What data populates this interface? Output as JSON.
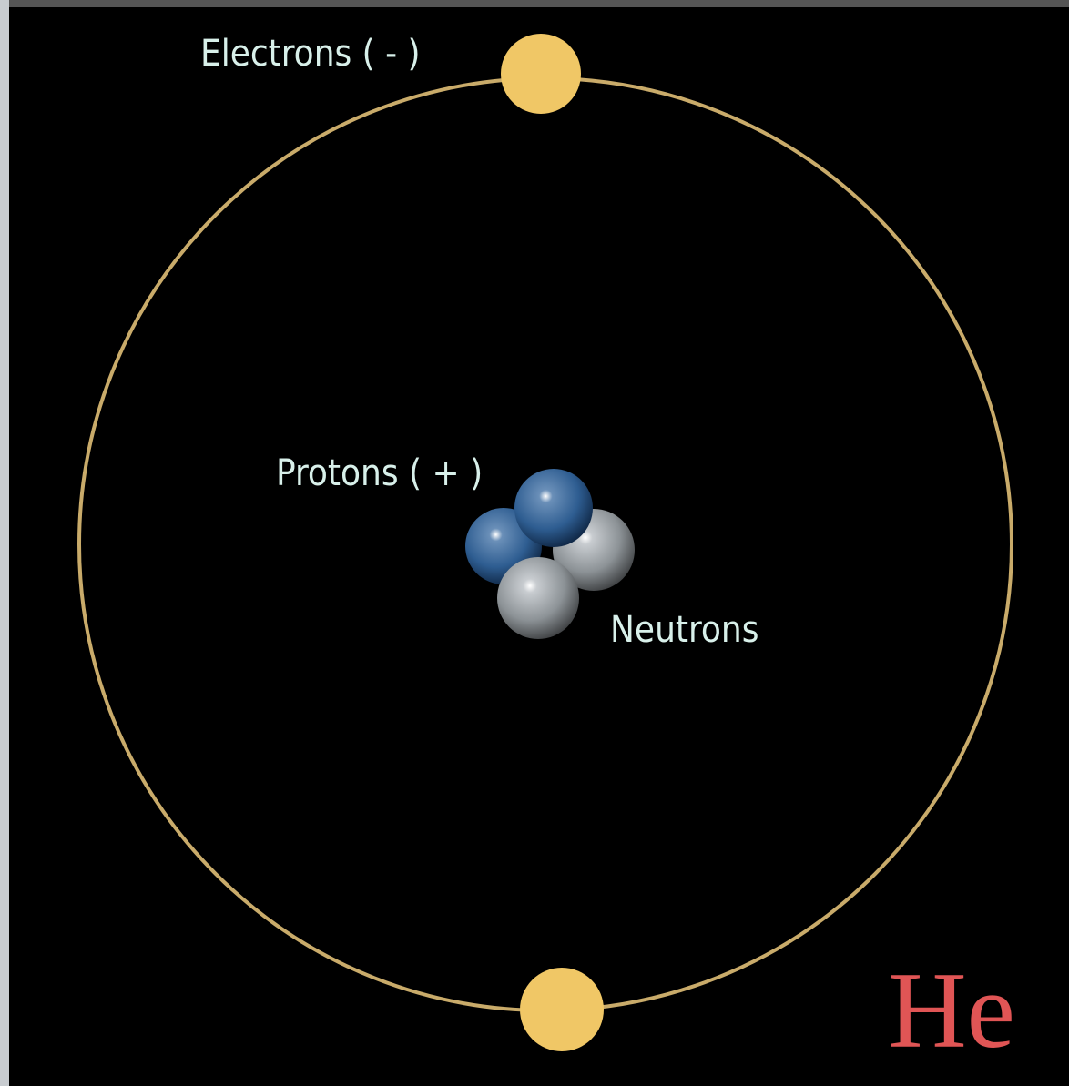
{
  "labels": {
    "electrons": "Electrons ( - )",
    "protons": "Protons ( + )",
    "neutrons": "Neutrons"
  },
  "symbol": "He"
}
